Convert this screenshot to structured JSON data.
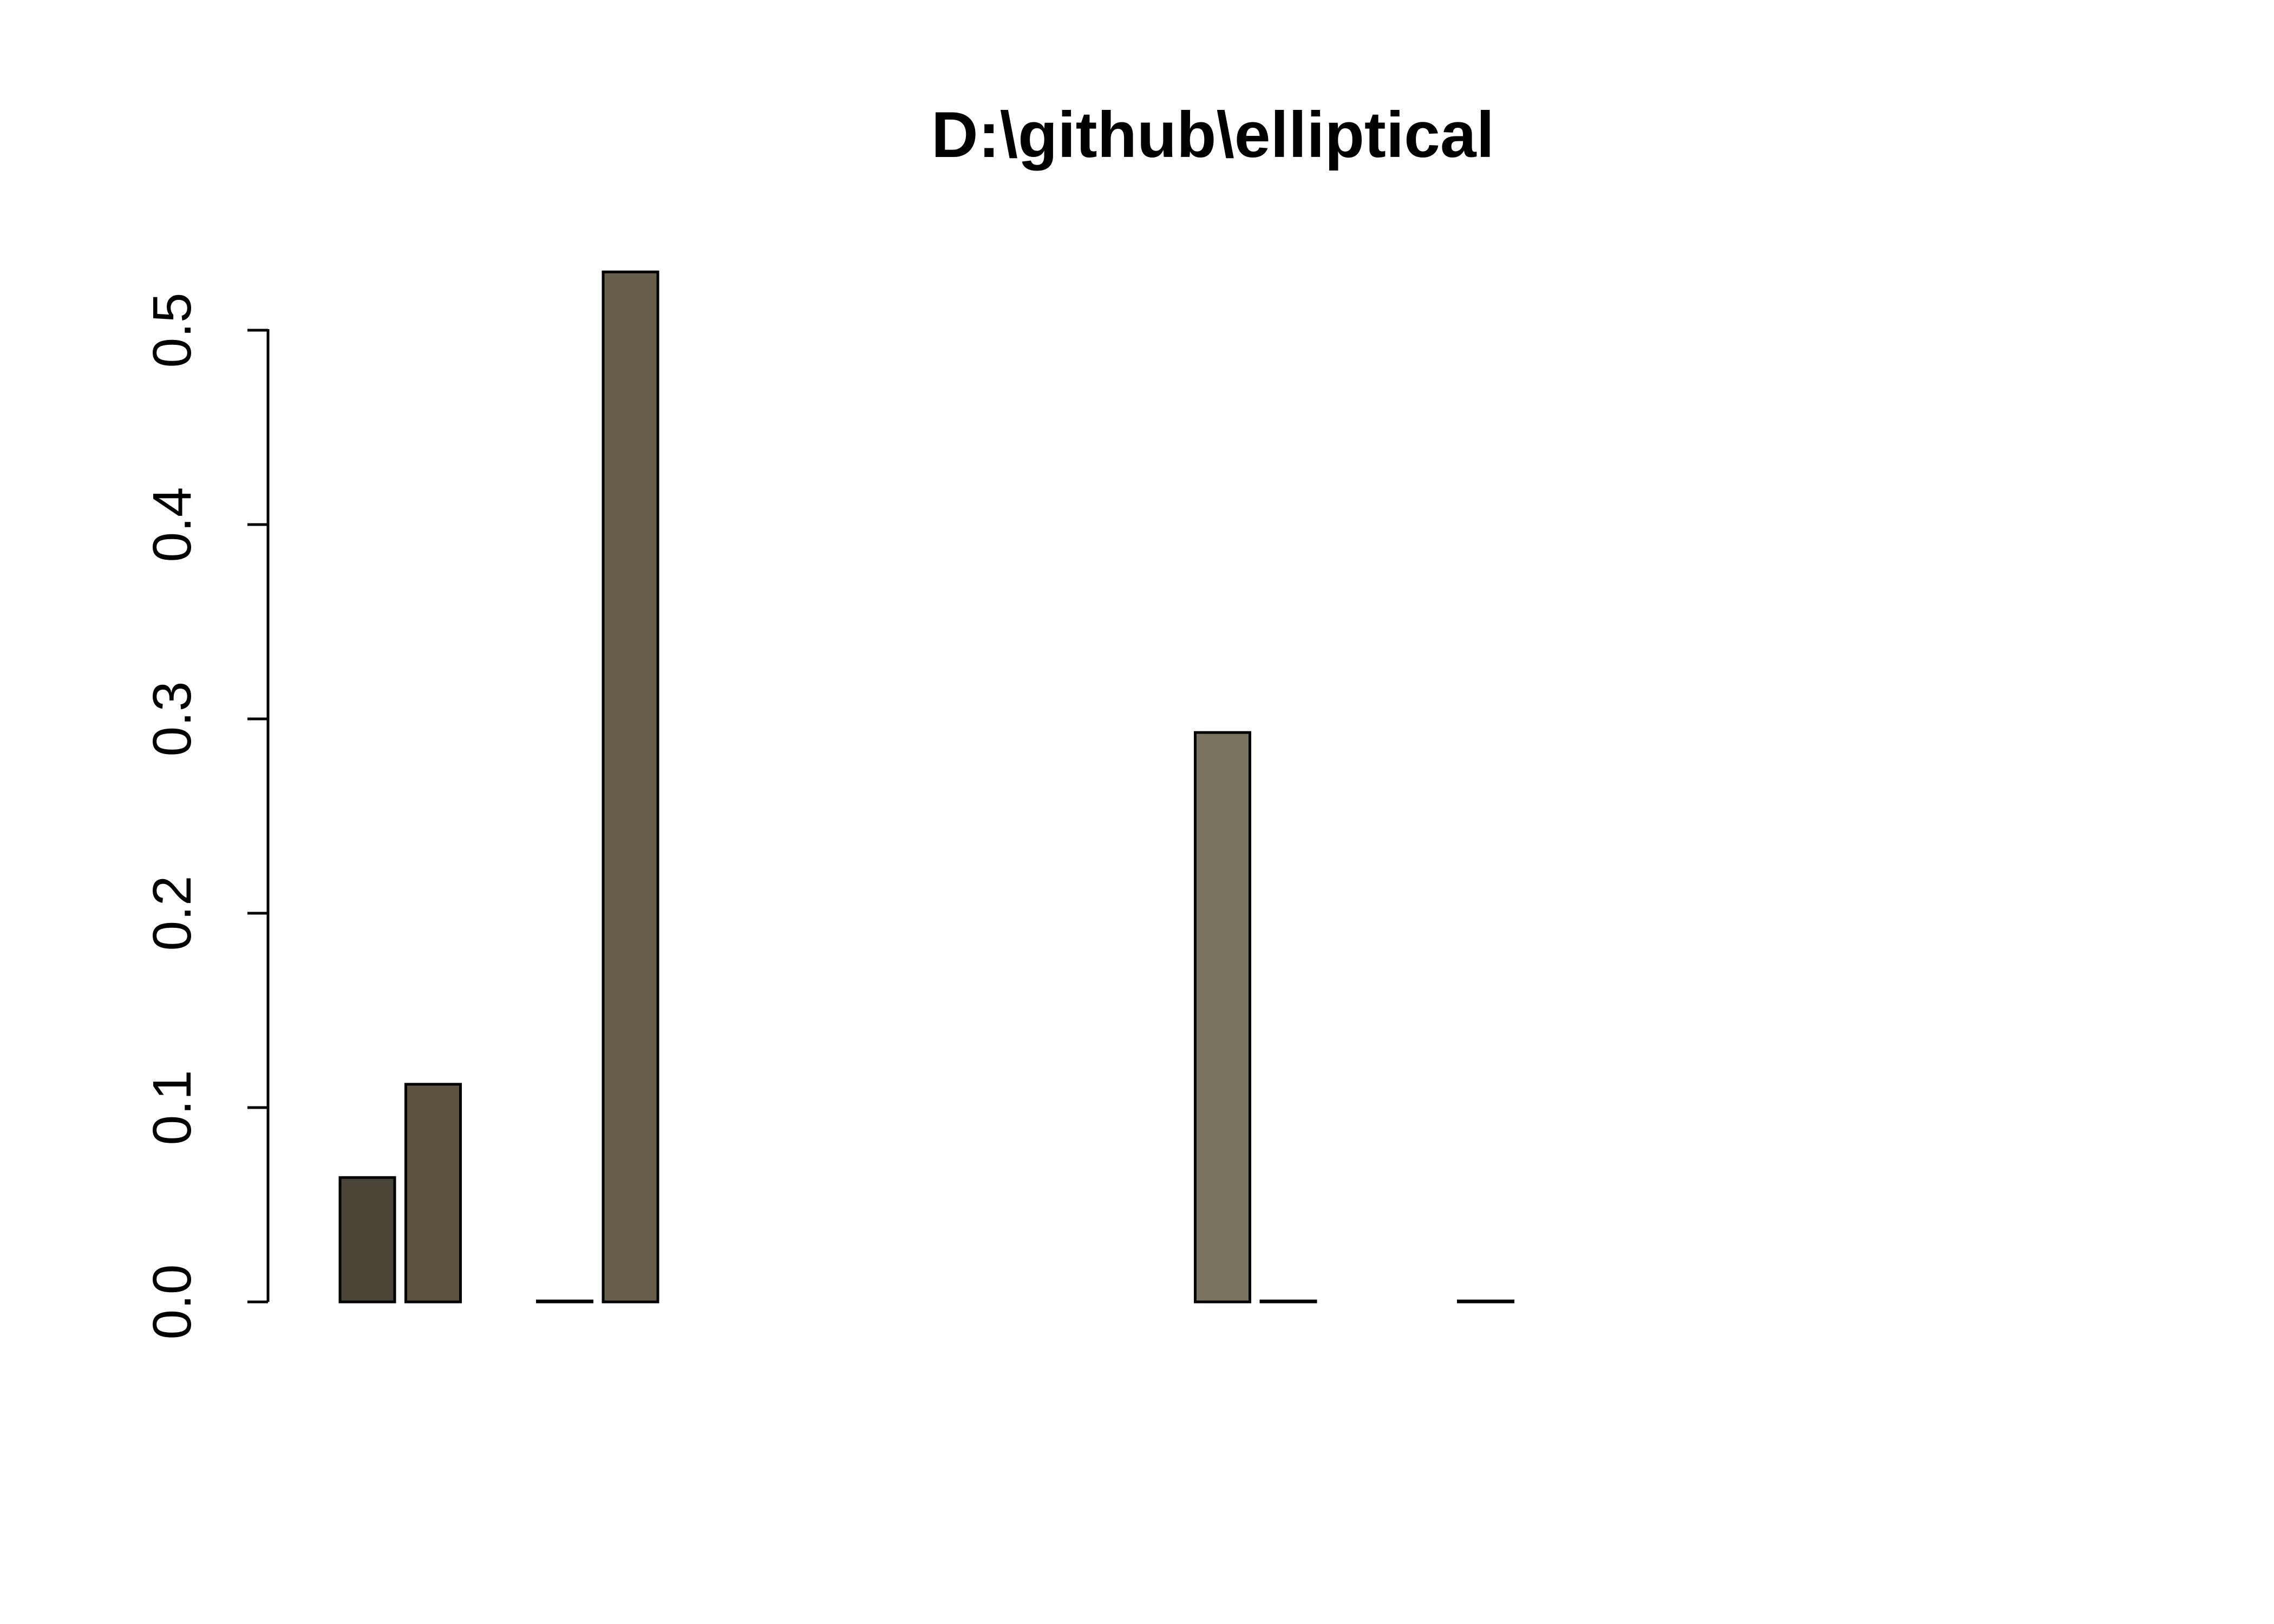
{
  "chart_data": {
    "type": "bar",
    "title": "D:\\github\\elliptical",
    "xlabel": "",
    "ylabel": "",
    "ylim": [
      0,
      0.53
    ],
    "yticks": [
      "0.0",
      "0.1",
      "0.2",
      "0.3",
      "0.4",
      "0.5"
    ],
    "grid": false,
    "values": [
      0.064,
      0.112,
      0.0,
      0.0005,
      0.53,
      0.0,
      0.0,
      0.0,
      0.0,
      0.0,
      0.0,
      0.0,
      0.0,
      0.293,
      0.0005,
      0.0,
      0.0,
      0.0005,
      0.0,
      0.0,
      0.0,
      0.0,
      0.0,
      0.0,
      0.0,
      0.0,
      0.0
    ],
    "colors": [
      "#4a4536",
      "#5b5340",
      "#5e5744",
      "#625b48",
      "#675f4b",
      "#6a6350",
      "#6c6552",
      "#6e6754",
      "#706956",
      "#726b58",
      "#746d5a",
      "#766f5c",
      "#78715e",
      "#7a7360",
      "#7c7562",
      "#7e7764",
      "#807966",
      "#827b68",
      "#847d6a",
      "#867f6c",
      "#88816e",
      "#8a8370",
      "#8c8572",
      "#8e8774",
      "#908976",
      "#928b78",
      "#948d7a"
    ]
  }
}
